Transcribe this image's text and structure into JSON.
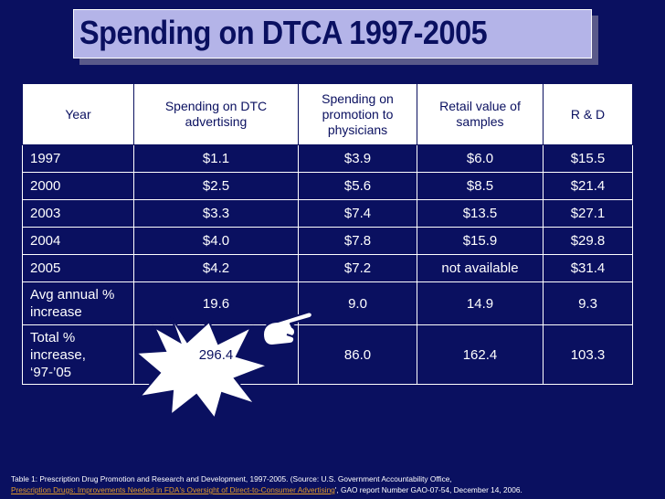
{
  "slide": {
    "title": "Spending on DTCA 1997-2005"
  },
  "table": {
    "headers": [
      "Year",
      "Spending on DTC advertising",
      "Spending on promotion to physicians",
      "Retail value of samples",
      "R & D"
    ],
    "rows": [
      [
        "1997",
        "$1.1",
        "$3.9",
        "$6.0",
        "$15.5"
      ],
      [
        "2000",
        "$2.5",
        "$5.6",
        "$8.5",
        "$21.4"
      ],
      [
        "2003",
        "$3.3",
        "$7.4",
        "$13.5",
        "$27.1"
      ],
      [
        "2004",
        "$4.0",
        "$7.8",
        "$15.9",
        "$29.8"
      ],
      [
        "2005",
        "$4.2",
        "$7.2",
        "not available",
        "$31.4"
      ],
      [
        "Avg annual % increase",
        "19.6",
        "9.0",
        "14.9",
        "9.3"
      ],
      [
        "Total % increase, ‘97-’05",
        "296.4",
        "86.0",
        "162.4",
        "103.3"
      ]
    ]
  },
  "callout": {
    "burst_color": "#ffffff",
    "burst_outline": "#0a1060",
    "icon": "pointing-hand-icon"
  },
  "caption": {
    "line1": "Table 1: Prescription Drug Promotion and Research and Development, 1997-2005. (Source: U.S. Government Accountability Office,",
    "link_text": "Prescription Drugs: Improvements Needed in FDA's Oversight of Direct-to-Consumer Advertising",
    "line2_rest": "', GAO report Number GAO-07-54, December 14, 2006."
  },
  "colors": {
    "background": "#0a1060",
    "title_box": "#b4b4e8",
    "title_text": "#0a1060",
    "link": "#e39a2a"
  }
}
